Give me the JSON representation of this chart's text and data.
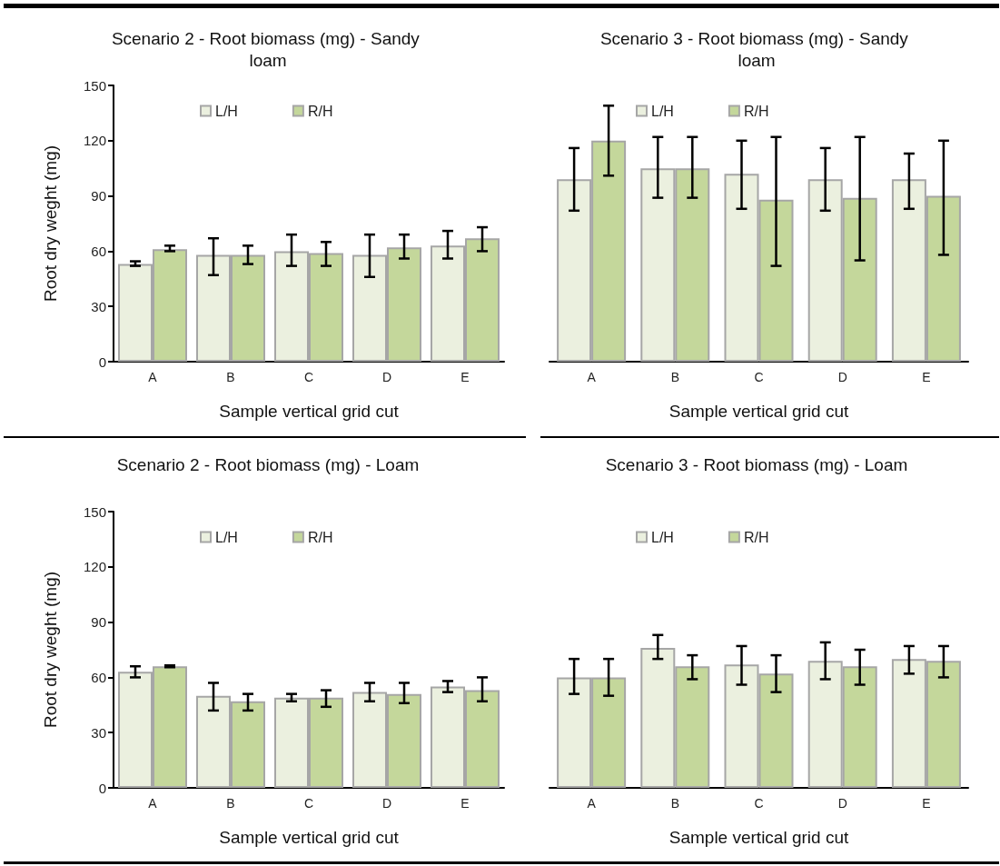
{
  "chart_data": [
    {
      "type": "bar",
      "title": "Scenario 2 - Root biomass (mg) - Sandy loam",
      "xlabel": "Sample vertical grid cut",
      "ylabel": "Root dry weght (mg)",
      "categories": [
        "A",
        "B",
        "C",
        "D",
        "E"
      ],
      "ylim": [
        0,
        150
      ],
      "yticks": [
        0,
        30,
        60,
        90,
        120,
        150
      ],
      "grid": false,
      "legend": "top",
      "series": [
        {
          "name": "L/H",
          "color": "#ebf0df",
          "values": [
            53,
            58,
            60,
            58,
            63
          ],
          "errors": [
            [
              52,
              54.5
            ],
            [
              47,
              67
            ],
            [
              52,
              69
            ],
            [
              46,
              69
            ],
            [
              56,
              71
            ]
          ]
        },
        {
          "name": "R/H",
          "color": "#c4d79b",
          "values": [
            61,
            58,
            59,
            62,
            67
          ],
          "errors": [
            [
              60,
              63
            ],
            [
              53,
              63
            ],
            [
              52,
              65
            ],
            [
              56,
              69
            ],
            [
              60,
              73
            ]
          ]
        }
      ]
    },
    {
      "type": "bar",
      "title": "Scenario 3 - Root biomass (mg) - Sandy loam",
      "xlabel": "Sample vertical grid cut",
      "categories": [
        "A",
        "B",
        "C",
        "D",
        "E"
      ],
      "ylim": [
        0,
        150
      ],
      "yticks": [
        0,
        30,
        60,
        90,
        120,
        150
      ],
      "tick_labels": "x",
      "grid": false,
      "legend": "top",
      "series": [
        {
          "name": "L/H",
          "color": "#ebf0df",
          "values": [
            99,
            105,
            102,
            99,
            99
          ],
          "errors": [
            [
              82,
              116
            ],
            [
              89,
              122
            ],
            [
              83,
              120
            ],
            [
              82,
              116
            ],
            [
              83,
              113
            ]
          ]
        },
        {
          "name": "R/H",
          "color": "#c4d79b",
          "values": [
            120,
            105,
            88,
            89,
            90
          ],
          "errors": [
            [
              101,
              139
            ],
            [
              89,
              122
            ],
            [
              52,
              122
            ],
            [
              55,
              122
            ],
            [
              58,
              120
            ]
          ]
        }
      ]
    },
    {
      "type": "bar",
      "title": "Scenario 2 - Root biomass (mg) - Loam",
      "xlabel": "Sample vertical grid cut",
      "ylabel": "Root dry weght (mg)",
      "categories": [
        "A",
        "B",
        "C",
        "D",
        "E"
      ],
      "ylim": [
        0,
        150
      ],
      "yticks": [
        0,
        30,
        60,
        90,
        120,
        150
      ],
      "grid": false,
      "legend": "top",
      "series": [
        {
          "name": "L/H",
          "color": "#ebf0df",
          "values": [
            63,
            50,
            49,
            52,
            55
          ],
          "errors": [
            [
              60,
              66
            ],
            [
              42,
              57
            ],
            [
              47,
              51
            ],
            [
              47,
              57
            ],
            [
              52,
              58
            ]
          ]
        },
        {
          "name": "R/H",
          "color": "#c4d79b",
          "values": [
            66,
            47,
            49,
            51,
            53
          ],
          "errors": [
            [
              65.5,
              66.5
            ],
            [
              42,
              51
            ],
            [
              44,
              53
            ],
            [
              46,
              57
            ],
            [
              47,
              60
            ]
          ]
        }
      ]
    },
    {
      "type": "bar",
      "title": "Scenario 3 - Root biomass (mg) - Loam",
      "xlabel": "Sample vertical grid cut",
      "categories": [
        "A",
        "B",
        "C",
        "D",
        "E"
      ],
      "ylim": [
        0,
        150
      ],
      "yticks": [
        0,
        30,
        60,
        90,
        120,
        150
      ],
      "tick_labels": "x",
      "grid": false,
      "legend": "top",
      "series": [
        {
          "name": "L/H",
          "color": "#ebf0df",
          "values": [
            60,
            76,
            67,
            69,
            70
          ],
          "errors": [
            [
              51,
              70
            ],
            [
              70,
              83
            ],
            [
              56,
              77
            ],
            [
              59,
              79
            ],
            [
              62,
              77
            ]
          ]
        },
        {
          "name": "R/H",
          "color": "#c4d79b",
          "values": [
            60,
            66,
            62,
            66,
            69
          ],
          "errors": [
            [
              50,
              70
            ],
            [
              59,
              72
            ],
            [
              52,
              72
            ],
            [
              56,
              75
            ],
            [
              60,
              77
            ]
          ]
        }
      ]
    }
  ]
}
